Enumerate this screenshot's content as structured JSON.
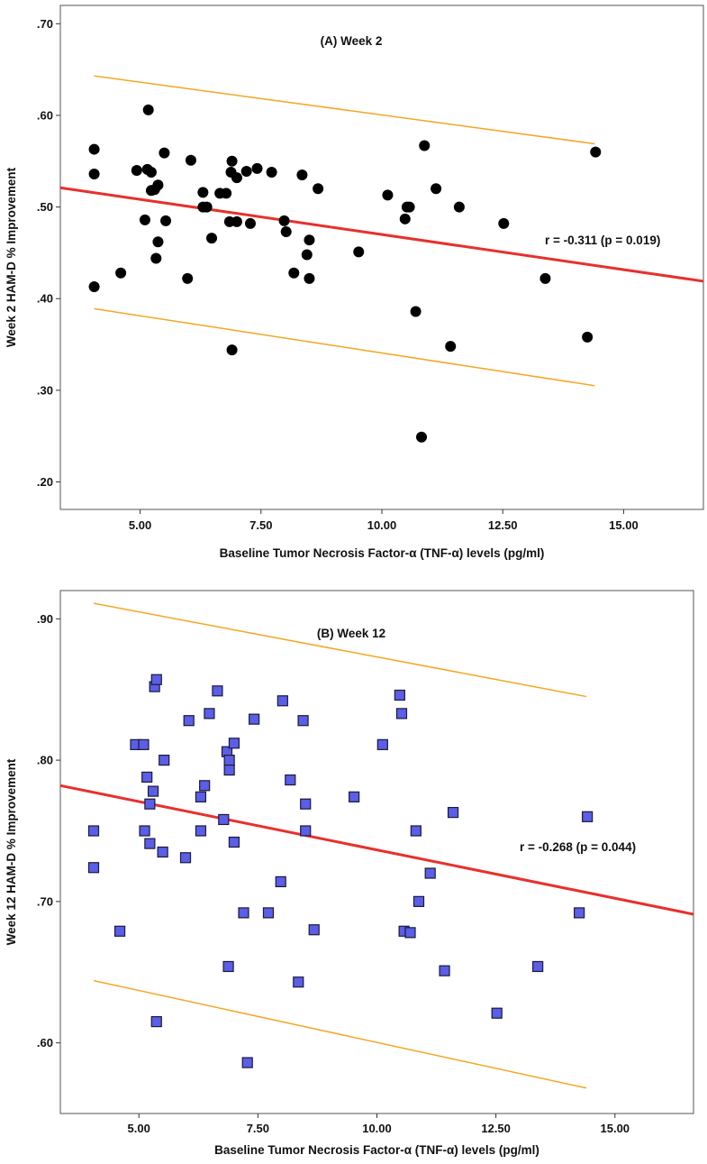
{
  "chart_data": [
    {
      "type": "scatter",
      "title": "(A) Week 2",
      "xlabel": "Baseline Tumor Necrosis Factor-α (TNF-α) levels (pg/ml)",
      "ylabel": "Week 2 HAM-D % Improvement",
      "xlim": [
        3.35,
        16.65
      ],
      "ylim": [
        0.17,
        0.72
      ],
      "x_ticks": [
        5,
        7.5,
        10,
        12.5,
        15
      ],
      "x_tick_labels": [
        "5.00",
        "7.50",
        "10.00",
        "12.50",
        "15.00"
      ],
      "y_ticks": [
        0.2,
        0.3,
        0.4,
        0.5,
        0.6,
        0.7
      ],
      "y_tick_labels": [
        ".20",
        ".30",
        ".40",
        ".50",
        ".60",
        ".70"
      ],
      "marker": "circle",
      "marker_color": "#000000",
      "annotation": "r = -0.311 (p = 0.019)",
      "fit_line": {
        "x": [
          3.35,
          16.65
        ],
        "y": [
          0.521,
          0.419
        ],
        "color": "#e8302c"
      },
      "ci_upper": {
        "x": [
          4.05,
          14.4
        ],
        "y": [
          0.643,
          0.569
        ],
        "color": "#f5a623"
      },
      "ci_lower": {
        "x": [
          4.05,
          14.4
        ],
        "y": [
          0.389,
          0.305
        ],
        "color": "#f5a623"
      },
      "points": [
        {
          "x": 4.05,
          "y": 0.563
        },
        {
          "x": 4.05,
          "y": 0.536
        },
        {
          "x": 4.05,
          "y": 0.413
        },
        {
          "x": 4.6,
          "y": 0.428
        },
        {
          "x": 4.93,
          "y": 0.54
        },
        {
          "x": 5.1,
          "y": 0.486
        },
        {
          "x": 5.15,
          "y": 0.541
        },
        {
          "x": 5.17,
          "y": 0.606
        },
        {
          "x": 5.23,
          "y": 0.538
        },
        {
          "x": 5.23,
          "y": 0.518
        },
        {
          "x": 5.3,
          "y": 0.519
        },
        {
          "x": 5.33,
          "y": 0.444
        },
        {
          "x": 5.37,
          "y": 0.524
        },
        {
          "x": 5.37,
          "y": 0.462
        },
        {
          "x": 5.5,
          "y": 0.559
        },
        {
          "x": 5.53,
          "y": 0.485
        },
        {
          "x": 5.98,
          "y": 0.422
        },
        {
          "x": 6.05,
          "y": 0.551
        },
        {
          "x": 6.3,
          "y": 0.516
        },
        {
          "x": 6.3,
          "y": 0.5
        },
        {
          "x": 6.38,
          "y": 0.5
        },
        {
          "x": 6.48,
          "y": 0.466
        },
        {
          "x": 6.65,
          "y": 0.515
        },
        {
          "x": 6.78,
          "y": 0.515
        },
        {
          "x": 6.85,
          "y": 0.484
        },
        {
          "x": 6.88,
          "y": 0.538
        },
        {
          "x": 6.9,
          "y": 0.55
        },
        {
          "x": 6.9,
          "y": 0.344
        },
        {
          "x": 7.0,
          "y": 0.484
        },
        {
          "x": 7.0,
          "y": 0.532
        },
        {
          "x": 7.2,
          "y": 0.539
        },
        {
          "x": 7.28,
          "y": 0.482
        },
        {
          "x": 7.42,
          "y": 0.542
        },
        {
          "x": 7.72,
          "y": 0.538
        },
        {
          "x": 7.98,
          "y": 0.485
        },
        {
          "x": 8.02,
          "y": 0.473
        },
        {
          "x": 8.18,
          "y": 0.428
        },
        {
          "x": 8.35,
          "y": 0.535
        },
        {
          "x": 8.45,
          "y": 0.448
        },
        {
          "x": 8.5,
          "y": 0.464
        },
        {
          "x": 8.5,
          "y": 0.422
        },
        {
          "x": 8.68,
          "y": 0.52
        },
        {
          "x": 9.52,
          "y": 0.451
        },
        {
          "x": 10.12,
          "y": 0.513
        },
        {
          "x": 10.48,
          "y": 0.487
        },
        {
          "x": 10.52,
          "y": 0.5
        },
        {
          "x": 10.57,
          "y": 0.5
        },
        {
          "x": 10.7,
          "y": 0.386
        },
        {
          "x": 10.82,
          "y": 0.249
        },
        {
          "x": 10.88,
          "y": 0.567
        },
        {
          "x": 11.12,
          "y": 0.52
        },
        {
          "x": 11.42,
          "y": 0.348
        },
        {
          "x": 11.6,
          "y": 0.5
        },
        {
          "x": 12.52,
          "y": 0.482
        },
        {
          "x": 13.38,
          "y": 0.422
        },
        {
          "x": 14.25,
          "y": 0.358
        },
        {
          "x": 14.42,
          "y": 0.56
        }
      ]
    },
    {
      "type": "scatter",
      "title": "(B) Week 12",
      "xlabel": "Baseline Tumor Necrosis Factor-α (TNF-α) levels (pg/ml)",
      "ylabel": "Week 12 HAM-D % Improvement",
      "xlim": [
        3.35,
        16.65
      ],
      "ylim": [
        0.55,
        0.92
      ],
      "x_ticks": [
        5,
        7.5,
        10,
        12.5,
        15
      ],
      "x_tick_labels": [
        "5.00",
        "7.50",
        "10.00",
        "12.50",
        "15.00"
      ],
      "y_ticks": [
        0.6,
        0.7,
        0.8,
        0.9
      ],
      "y_tick_labels": [
        ".60",
        ".70",
        ".80",
        ".90"
      ],
      "marker": "square",
      "marker_color": "#5b5ee6",
      "annotation": "r = -0.268 (p = 0.044)",
      "fit_line": {
        "x": [
          3.35,
          16.65
        ],
        "y": [
          0.782,
          0.691
        ],
        "color": "#e8302c"
      },
      "ci_upper": {
        "x": [
          4.05,
          14.4
        ],
        "y": [
          0.911,
          0.845
        ],
        "color": "#f5a623"
      },
      "ci_lower": {
        "x": [
          4.05,
          14.4
        ],
        "y": [
          0.644,
          0.568
        ],
        "color": "#f5a623"
      },
      "points": [
        {
          "x": 4.05,
          "y": 0.75
        },
        {
          "x": 4.05,
          "y": 0.724
        },
        {
          "x": 4.6,
          "y": 0.679
        },
        {
          "x": 4.93,
          "y": 0.811
        },
        {
          "x": 5.1,
          "y": 0.811
        },
        {
          "x": 5.12,
          "y": 0.75
        },
        {
          "x": 5.17,
          "y": 0.788
        },
        {
          "x": 5.23,
          "y": 0.741
        },
        {
          "x": 5.23,
          "y": 0.769
        },
        {
          "x": 5.3,
          "y": 0.778
        },
        {
          "x": 5.33,
          "y": 0.852
        },
        {
          "x": 5.37,
          "y": 0.857
        },
        {
          "x": 5.37,
          "y": 0.615
        },
        {
          "x": 5.5,
          "y": 0.735
        },
        {
          "x": 5.53,
          "y": 0.8
        },
        {
          "x": 5.98,
          "y": 0.731
        },
        {
          "x": 6.05,
          "y": 0.828
        },
        {
          "x": 6.3,
          "y": 0.774
        },
        {
          "x": 6.3,
          "y": 0.75
        },
        {
          "x": 6.38,
          "y": 0.782
        },
        {
          "x": 6.48,
          "y": 0.833
        },
        {
          "x": 6.65,
          "y": 0.849
        },
        {
          "x": 6.78,
          "y": 0.758
        },
        {
          "x": 6.85,
          "y": 0.806
        },
        {
          "x": 6.88,
          "y": 0.654
        },
        {
          "x": 6.9,
          "y": 0.8
        },
        {
          "x": 6.9,
          "y": 0.793
        },
        {
          "x": 7.0,
          "y": 0.742
        },
        {
          "x": 7.0,
          "y": 0.812
        },
        {
          "x": 7.2,
          "y": 0.692
        },
        {
          "x": 7.28,
          "y": 0.586
        },
        {
          "x": 7.42,
          "y": 0.829
        },
        {
          "x": 7.72,
          "y": 0.692
        },
        {
          "x": 7.98,
          "y": 0.714
        },
        {
          "x": 8.02,
          "y": 0.842
        },
        {
          "x": 8.18,
          "y": 0.786
        },
        {
          "x": 8.35,
          "y": 0.643
        },
        {
          "x": 8.45,
          "y": 0.828
        },
        {
          "x": 8.5,
          "y": 0.769
        },
        {
          "x": 8.5,
          "y": 0.75
        },
        {
          "x": 8.68,
          "y": 0.68
        },
        {
          "x": 9.52,
          "y": 0.774
        },
        {
          "x": 10.12,
          "y": 0.811
        },
        {
          "x": 10.48,
          "y": 0.846
        },
        {
          "x": 10.52,
          "y": 0.833
        },
        {
          "x": 10.57,
          "y": 0.679
        },
        {
          "x": 10.7,
          "y": 0.678
        },
        {
          "x": 10.82,
          "y": 0.75
        },
        {
          "x": 10.88,
          "y": 0.7
        },
        {
          "x": 11.12,
          "y": 0.72
        },
        {
          "x": 11.42,
          "y": 0.651
        },
        {
          "x": 11.6,
          "y": 0.763
        },
        {
          "x": 12.52,
          "y": 0.621
        },
        {
          "x": 13.38,
          "y": 0.654
        },
        {
          "x": 14.25,
          "y": 0.692
        },
        {
          "x": 14.42,
          "y": 0.76
        }
      ]
    }
  ]
}
